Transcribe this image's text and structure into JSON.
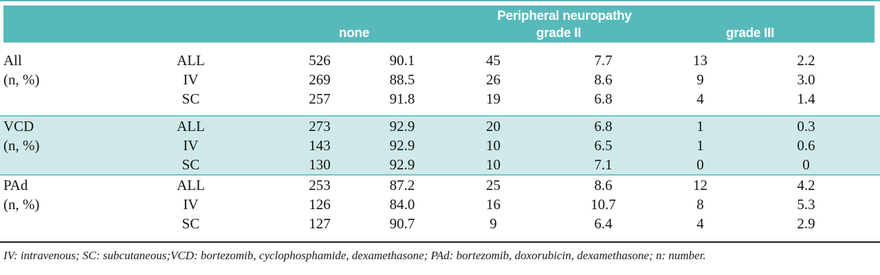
{
  "table": {
    "header": {
      "group_title": "Peripheral neuropathy",
      "columns": [
        "none",
        "grade II",
        "grade III"
      ]
    },
    "sections": [
      {
        "label": "All",
        "sublabel": "(n, %)",
        "highlighted": false,
        "rows": [
          [
            "ALL",
            "526",
            "90.1",
            "45",
            "7.7",
            "13",
            "2.2"
          ],
          [
            "IV",
            "269",
            "88.5",
            "26",
            "8.6",
            "9",
            "3.0"
          ],
          [
            "SC",
            "257",
            "91.8",
            "19",
            "6.8",
            "4",
            "1.4"
          ]
        ]
      },
      {
        "label": "VCD",
        "sublabel": "(n, %)",
        "highlighted": true,
        "rows": [
          [
            "ALL",
            "273",
            "92.9",
            "20",
            "6.8",
            "1",
            "0.3"
          ],
          [
            "IV",
            "143",
            "92.9",
            "10",
            "6.5",
            "1",
            "0.6"
          ],
          [
            "SC",
            "130",
            "92.9",
            "10",
            "7.1",
            "0",
            "0"
          ]
        ]
      },
      {
        "label": "PAd",
        "sublabel": "(n, %)",
        "highlighted": false,
        "rows": [
          [
            "ALL",
            "253",
            "87.2",
            "25",
            "8.6",
            "12",
            "4.2"
          ],
          [
            "IV",
            "126",
            "84.0",
            "16",
            "10.7",
            "8",
            "5.3"
          ],
          [
            "SC",
            "127",
            "90.7",
            "9",
            "6.4",
            "4",
            "2.9"
          ]
        ]
      }
    ],
    "footnote": "IV: intravenous; SC: subcutaneous;VCD: bortezomib, cyclophosphamide, dexamethasone; PAd: bortezomib, doxorubicin, dexamethasone; n: number."
  },
  "colors": {
    "header_bg": "#58b9ba",
    "highlight_band_bg": "#cfe9e9",
    "highlight_band_border": "#6fc4c5",
    "top_rule": "#58b9ba",
    "bottom_rule": "#1b1b1b",
    "header_text": "#ffffff",
    "body_text": "#141414"
  }
}
